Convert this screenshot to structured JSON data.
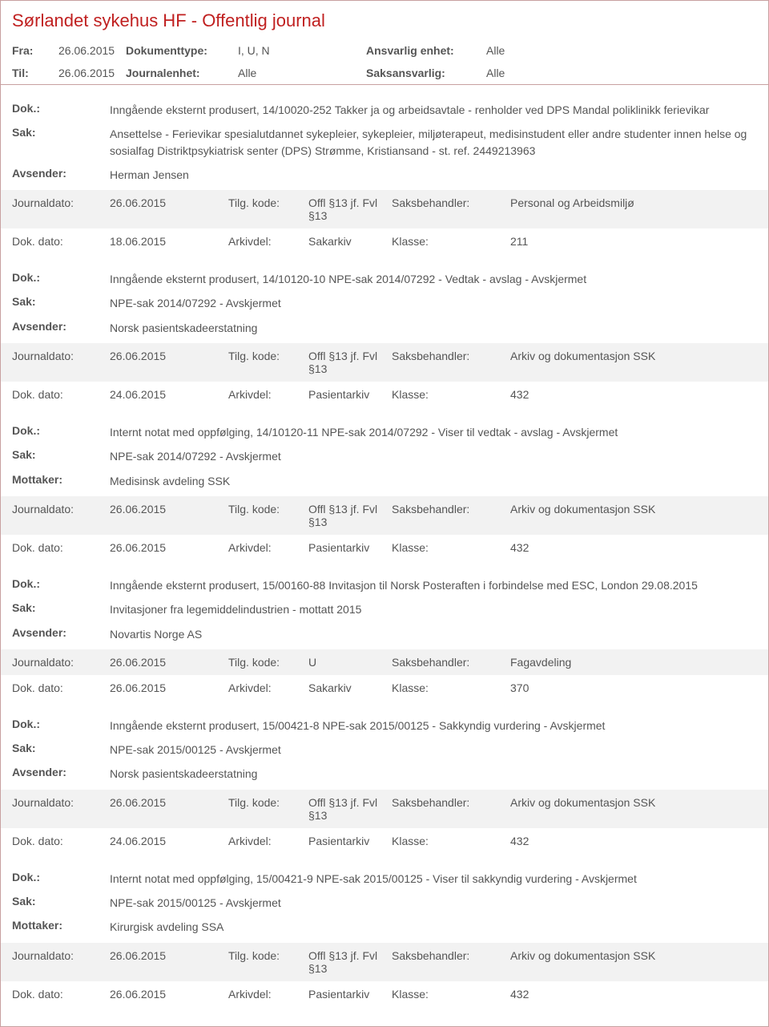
{
  "header": {
    "title": "Sørlandet sykehus HF - Offentlig journal",
    "fra_label": "Fra:",
    "til_label": "Til:",
    "fra_date": "26.06.2015",
    "til_date": "26.06.2015",
    "doktype_label": "Dokumenttype:",
    "doktype_val": "I, U, N",
    "journalenhet_label": "Journalenhet:",
    "journalenhet_val": "Alle",
    "ansvarlig_label": "Ansvarlig enhet:",
    "ansvarlig_val": "Alle",
    "saksansvarlig_label": "Saksansvarlig:",
    "saksansvarlig_val": "Alle"
  },
  "labels": {
    "dok": "Dok.:",
    "sak": "Sak:",
    "avsender": "Avsender:",
    "mottaker": "Mottaker:",
    "journaldato": "Journaldato:",
    "dokdato": "Dok. dato:",
    "tilgkode": "Tilg. kode:",
    "arkivdel": "Arkivdel:",
    "saksbehandler": "Saksbehandler:",
    "klasse": "Klasse:"
  },
  "entries": [
    {
      "dok": "Inngående eksternt produsert, 14/10020-252 Takker ja og arbeidsavtale - renholder ved DPS Mandal poliklinikk ferievikar",
      "sak": "Ansettelse - Ferievikar spesialutdannet sykepleier, sykepleier, miljøterapeut, medisinstudent eller andre studenter innen helse og sosialfag Distriktpsykiatrisk senter (DPS) Strømme, Kristiansand - st. ref. 2449213963",
      "party_label": "Avsender:",
      "party": "Herman Jensen",
      "journaldato": "26.06.2015",
      "tilgkode": "Offl §13 jf. Fvl §13",
      "saksbehandler": "Personal og Arbeidsmiljø",
      "dokdato": "18.06.2015",
      "arkivdel": "Sakarkiv",
      "klasse": "211"
    },
    {
      "dok": "Inngående eksternt produsert, 14/10120-10 NPE-sak 2014/07292 - Vedtak - avslag - Avskjermet",
      "sak": "NPE-sak 2014/07292 - Avskjermet",
      "party_label": "Avsender:",
      "party": "Norsk pasientskadeerstatning",
      "journaldato": "26.06.2015",
      "tilgkode": "Offl §13 jf. Fvl §13",
      "saksbehandler": "Arkiv og dokumentasjon SSK",
      "dokdato": "24.06.2015",
      "arkivdel": "Pasientarkiv",
      "klasse": "432"
    },
    {
      "dok": "Internt notat med oppfølging, 14/10120-11 NPE-sak 2014/07292 - Viser til vedtak - avslag - Avskjermet",
      "sak": "NPE-sak 2014/07292 - Avskjermet",
      "party_label": "Mottaker:",
      "party": "Medisinsk avdeling SSK",
      "journaldato": "26.06.2015",
      "tilgkode": "Offl §13 jf. Fvl §13",
      "saksbehandler": "Arkiv og dokumentasjon SSK",
      "dokdato": "26.06.2015",
      "arkivdel": "Pasientarkiv",
      "klasse": "432"
    },
    {
      "dok": "Inngående eksternt produsert, 15/00160-88 Invitasjon til Norsk Posteraften i forbindelse med ESC, London 29.08.2015",
      "sak": "Invitasjoner fra legemiddelindustrien - mottatt 2015",
      "party_label": "Avsender:",
      "party": "Novartis Norge AS",
      "journaldato": "26.06.2015",
      "tilgkode": "U",
      "saksbehandler": "Fagavdeling",
      "dokdato": "26.06.2015",
      "arkivdel": "Sakarkiv",
      "klasse": "370"
    },
    {
      "dok": "Inngående eksternt produsert, 15/00421-8 NPE-sak 2015/00125 - Sakkyndig vurdering - Avskjermet",
      "sak": "NPE-sak 2015/00125 - Avskjermet",
      "party_label": "Avsender:",
      "party": "Norsk pasientskadeerstatning",
      "journaldato": "26.06.2015",
      "tilgkode": "Offl §13 jf. Fvl §13",
      "saksbehandler": "Arkiv og dokumentasjon SSK",
      "dokdato": "24.06.2015",
      "arkivdel": "Pasientarkiv",
      "klasse": "432"
    },
    {
      "dok": "Internt notat med oppfølging, 15/00421-9 NPE-sak 2015/00125 - Viser til sakkyndig vurdering - Avskjermet",
      "sak": "NPE-sak 2015/00125 - Avskjermet",
      "party_label": "Mottaker:",
      "party": "Kirurgisk avdeling SSA",
      "journaldato": "26.06.2015",
      "tilgkode": "Offl §13 jf. Fvl §13",
      "saksbehandler": "Arkiv og dokumentasjon SSK",
      "dokdato": "26.06.2015",
      "arkivdel": "Pasientarkiv",
      "klasse": "432"
    }
  ]
}
